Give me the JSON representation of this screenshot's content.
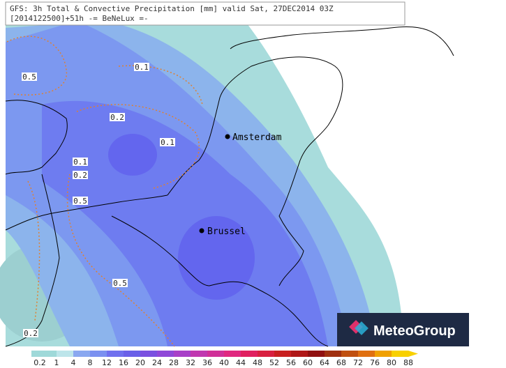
{
  "header": {
    "line1": "GFS: 3h Total & Convective Precipitation [mm] valid Sat, 27DEC2014 03Z",
    "line2": "[2014122500]+51h  -= BeNeLux =-"
  },
  "cities": [
    {
      "name": "Amsterdam"
    },
    {
      "name": "Brussel"
    }
  ],
  "contour_labels": [
    0.5,
    0.1,
    0.2,
    0.1,
    0.1,
    0.2,
    0.5,
    0.5,
    0.2
  ],
  "logo": {
    "text": "MeteoGroup"
  },
  "colorbar": {
    "labels": [
      0.2,
      1,
      4,
      8,
      12,
      16,
      20,
      24,
      28,
      32,
      36,
      40,
      44,
      48,
      52,
      56,
      60,
      64,
      68,
      72,
      76,
      80,
      88
    ],
    "colors": [
      "#9fd9d9",
      "#bde5ea",
      "#8aa8f0",
      "#7b90f0",
      "#7070ee",
      "#6a60e8",
      "#7a50e0",
      "#9048d8",
      "#a840c8",
      "#c038b0",
      "#d03098",
      "#e02880",
      "#e02060",
      "#d82040",
      "#c82020",
      "#b01818",
      "#901010",
      "#a03010",
      "#c05010",
      "#e07010",
      "#f0a000",
      "#f8d000"
    ]
  }
}
